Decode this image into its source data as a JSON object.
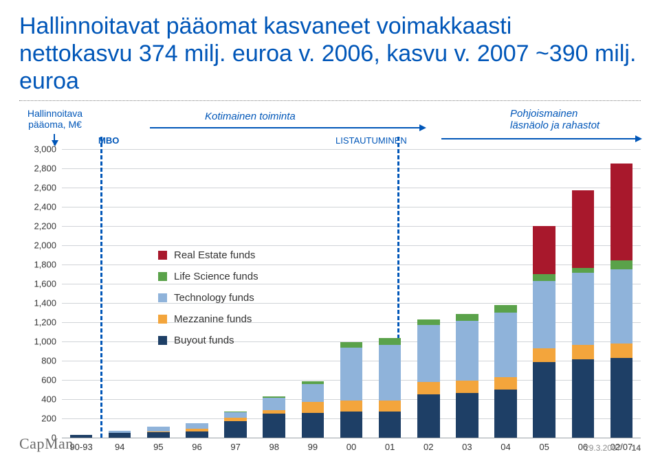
{
  "title_line1": "Hallinnoitavat pääomat kasvaneet voimakkaasti",
  "title_line2": "nettokasvu 374 milj. euroa v. 2006, kasvu v. 2007 ~390 milj. euroa",
  "title_color": "#0056b8",
  "title_fontsize": 34,
  "header": {
    "yaxis_title_l1": "Hallinnoitava",
    "yaxis_title_l2": "pääoma, M€",
    "mbo": "MBO",
    "kotimainen": "Kotimainen toiminta",
    "listauto": "LISTAUTUMINEN",
    "pohjoismainen_l1": "Pohjoismainen",
    "pohjoismainen_l2": "läsnäolo ja rahastot"
  },
  "chart": {
    "type": "stacked-bar",
    "ymax": 3000,
    "ytick_step": 200,
    "yticks": [
      "3,000",
      "2,800",
      "2,600",
      "2,400",
      "2,200",
      "2,000",
      "1,800",
      "1,600",
      "1,400",
      "1,200",
      "1,000",
      "800",
      "600",
      "400",
      "200",
      "0"
    ],
    "ytick_values": [
      3000,
      2800,
      2600,
      2400,
      2200,
      2000,
      1800,
      1600,
      1400,
      1200,
      1000,
      800,
      600,
      400,
      200,
      0
    ],
    "grid_color": "#d0d3d7",
    "background_color": "#ffffff",
    "bar_width_ratio": 0.58,
    "vlines": {
      "positions": [
        1,
        8.7
      ],
      "color": "#0056b8",
      "dash": "6,5"
    },
    "series_colors": {
      "buyout": "#1e3f66",
      "mezzanine": "#f3a53c",
      "technology": "#8fb3da",
      "life": "#5aa24a",
      "realestate": "#a8182c"
    },
    "legend_order": [
      "realestate",
      "life",
      "technology",
      "mezzanine",
      "buyout"
    ],
    "series_labels": {
      "realestate": "Real Estate funds",
      "life": "Life Science funds",
      "technology": "Technology funds",
      "mezzanine": "Mezzanine funds",
      "buyout": "Buyout funds"
    },
    "categories": [
      "90-93",
      "94",
      "95",
      "96",
      "97",
      "98",
      "99",
      "00",
      "01",
      "02",
      "03",
      "04",
      "05",
      "06",
      "02/07"
    ],
    "data": [
      {
        "buyout": 30,
        "mezzanine": 0,
        "technology": 0,
        "life": 0,
        "realestate": 0
      },
      {
        "buyout": 55,
        "mezzanine": 0,
        "technology": 20,
        "life": 0,
        "realestate": 0
      },
      {
        "buyout": 60,
        "mezzanine": 10,
        "technology": 45,
        "life": 0,
        "realestate": 0
      },
      {
        "buyout": 65,
        "mezzanine": 30,
        "technology": 55,
        "life": 5,
        "realestate": 0
      },
      {
        "buyout": 175,
        "mezzanine": 35,
        "technology": 55,
        "life": 10,
        "realestate": 0
      },
      {
        "buyout": 250,
        "mezzanine": 35,
        "technology": 135,
        "life": 10,
        "realestate": 0
      },
      {
        "buyout": 260,
        "mezzanine": 115,
        "technology": 185,
        "life": 25,
        "realestate": 0
      },
      {
        "buyout": 275,
        "mezzanine": 115,
        "technology": 550,
        "life": 55,
        "realestate": 0
      },
      {
        "buyout": 275,
        "mezzanine": 115,
        "technology": 580,
        "life": 70,
        "realestate": 0
      },
      {
        "buyout": 450,
        "mezzanine": 130,
        "technology": 595,
        "life": 55,
        "realestate": 0
      },
      {
        "buyout": 465,
        "mezzanine": 130,
        "technology": 620,
        "life": 75,
        "realestate": 0
      },
      {
        "buyout": 500,
        "mezzanine": 130,
        "technology": 675,
        "life": 75,
        "realestate": 0
      },
      {
        "buyout": 790,
        "mezzanine": 140,
        "technology": 700,
        "life": 70,
        "realestate": 500
      },
      {
        "buyout": 820,
        "mezzanine": 145,
        "technology": 750,
        "life": 55,
        "realestate": 805
      },
      {
        "buyout": 830,
        "mezzanine": 150,
        "technology": 775,
        "life": 90,
        "realestate": 1005
      }
    ]
  },
  "footer": {
    "logo": "CapMan",
    "date": "29.3.2007",
    "page": "14"
  }
}
